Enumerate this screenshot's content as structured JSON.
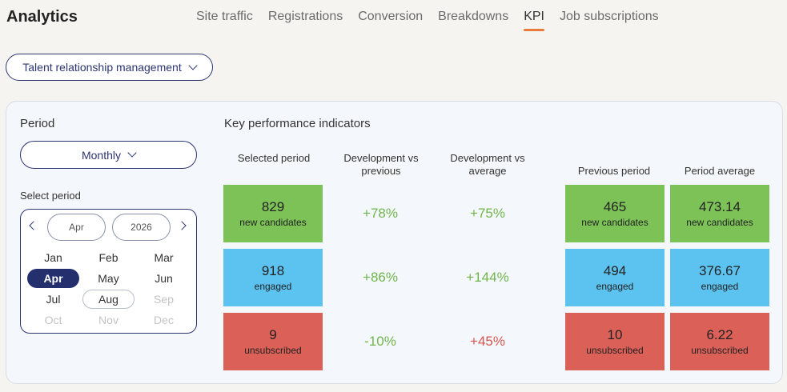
{
  "app": {
    "title": "Analytics"
  },
  "tabs": [
    {
      "label": "Site traffic"
    },
    {
      "label": "Registrations"
    },
    {
      "label": "Conversion"
    },
    {
      "label": "Breakdowns"
    },
    {
      "label": "KPI",
      "active": true
    },
    {
      "label": "Job subscriptions"
    }
  ],
  "filter": {
    "selected": "Talent relationship management"
  },
  "period": {
    "label": "Period",
    "selected": "Monthly",
    "select_period_label": "Select period",
    "calendar": {
      "month": "Apr",
      "year": "2026",
      "months": [
        "Jan",
        "Feb",
        "Mar",
        "Apr",
        "May",
        "Jun",
        "Jul",
        "Aug",
        "Sep",
        "Oct",
        "Nov",
        "Dec"
      ],
      "selected_month": "Apr",
      "outlined_month": "Aug",
      "disabled_months": [
        "Sep",
        "Oct",
        "Nov",
        "Dec"
      ]
    }
  },
  "kpi": {
    "title": "Key performance indicators",
    "headers": {
      "selected": "Selected period",
      "dev_prev_1": "Development vs",
      "dev_prev_2": "previous",
      "dev_avg_1": "Development vs",
      "dev_avg_2": "average",
      "previous": "Previous period",
      "average": "Period average"
    },
    "rows": [
      {
        "metric": "new candidates",
        "selected": "829",
        "dev_prev": "+78%",
        "dev_avg": "+75%",
        "previous": "465",
        "average": "473.14"
      },
      {
        "metric": "engaged",
        "selected": "918",
        "dev_prev": "+86%",
        "dev_avg": "+144%",
        "previous": "494",
        "average": "376.67"
      },
      {
        "metric": "unsubscribed",
        "selected": "9",
        "dev_prev": "-10%",
        "dev_avg": "+45%",
        "previous": "10",
        "average": "6.22"
      }
    ]
  },
  "colors": {
    "brand_navy": "#2c3572",
    "tab_accent": "#e87a3c",
    "tile_green": "#7cc257",
    "tile_blue": "#5cc2ef",
    "tile_red": "#db6058",
    "good_text": "#6fb54d",
    "bad_text": "#d5564f"
  }
}
